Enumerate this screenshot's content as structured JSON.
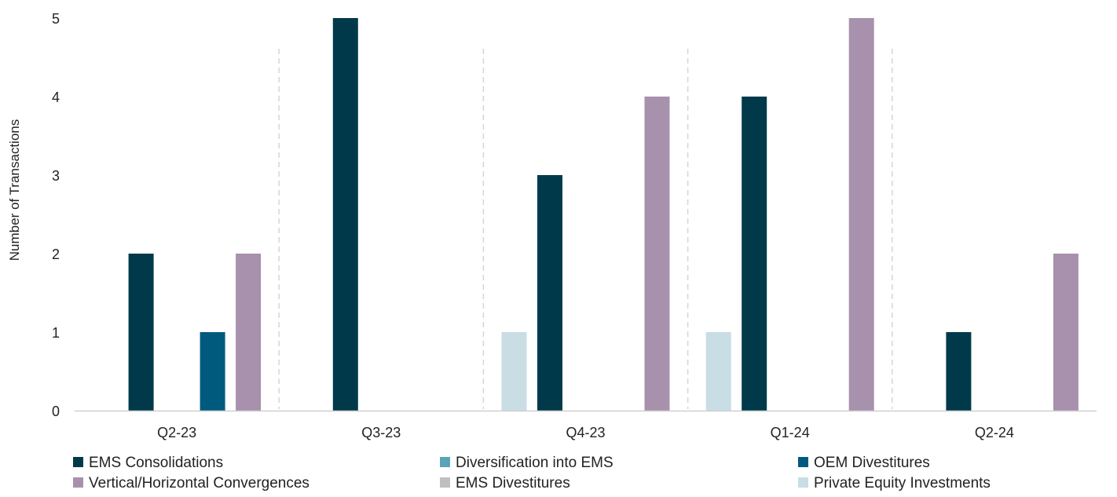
{
  "chart_data": {
    "type": "bar",
    "title": "",
    "xlabel": "",
    "ylabel": "Number of Transactions",
    "ylim": [
      0,
      5
    ],
    "yticks": [
      0,
      1,
      2,
      3,
      4,
      5
    ],
    "categories": [
      "Q2-23",
      "Q3-23",
      "Q4-23",
      "Q1-24",
      "Q2-24"
    ],
    "series": [
      {
        "name": "Private Equity Investments",
        "color": "#c9dde5",
        "values": [
          0,
          0,
          1,
          1,
          0
        ]
      },
      {
        "name": "EMS Consolidations",
        "color": "#003a4a",
        "values": [
          2,
          5,
          3,
          4,
          1
        ]
      },
      {
        "name": "Diversification into EMS",
        "color": "#5ba3b6",
        "values": [
          0,
          0,
          0,
          0,
          0
        ]
      },
      {
        "name": "OEM Divestitures",
        "color": "#005a7e",
        "values": [
          1,
          0,
          0,
          0,
          0
        ]
      },
      {
        "name": "Vertical/Horizontal Convergences",
        "color": "#a891ad",
        "values": [
          2,
          0,
          4,
          5,
          2
        ]
      }
    ],
    "legend": {
      "position": "bottom",
      "items": [
        {
          "name": "EMS Consolidations",
          "color": "#003a4a"
        },
        {
          "name": "Diversification into EMS",
          "color": "#5ba3b6"
        },
        {
          "name": "OEM Divestitures",
          "color": "#005a7e"
        },
        {
          "name": "Vertical/Horizontal Convergences",
          "color": "#a891ad"
        },
        {
          "name": "EMS Divestitures",
          "color": "#bfbfbf"
        },
        {
          "name": "Private Equity Investments",
          "color": "#c9dde5"
        }
      ]
    },
    "grid": false,
    "category_separators": true
  }
}
